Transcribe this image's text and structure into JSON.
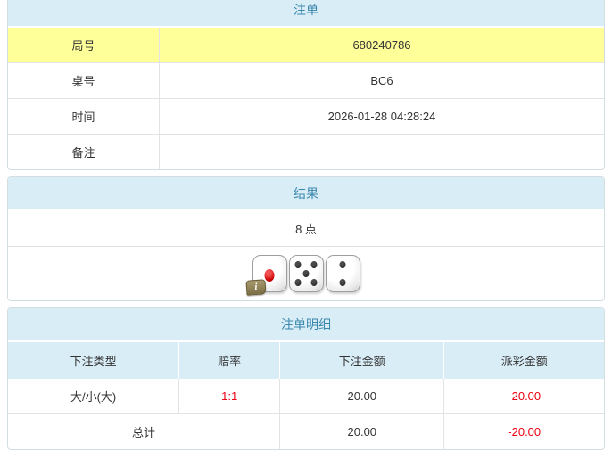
{
  "colors": {
    "title_bg": "#d9edf7",
    "title_text": "#3a87ad",
    "highlight_row_bg": "#ffff99",
    "negative_text": "#ee0011"
  },
  "bet_table": {
    "title": "注单",
    "rows": [
      {
        "label": "局号",
        "value": "680240786"
      },
      {
        "label": "桌号",
        "value": "BC6"
      },
      {
        "label": "时间",
        "value": "2026-01-28 04:28:24"
      },
      {
        "label": "备注",
        "value": ""
      }
    ]
  },
  "result_table": {
    "title": "结果",
    "points": "8 点",
    "dice": [
      1,
      5,
      2
    ],
    "info_icon": "i"
  },
  "detail_table": {
    "title": "注单明细",
    "columns": [
      "下注类型",
      "赔率",
      "下注金额",
      "派彩金额"
    ],
    "rows": [
      {
        "bet_type": "大/小(大)",
        "odds": "1:1",
        "bet_amount": "20.00",
        "payout": "-20.00"
      }
    ],
    "total": {
      "label": "总计",
      "bet_amount": "20.00",
      "payout": "-20.00"
    }
  }
}
